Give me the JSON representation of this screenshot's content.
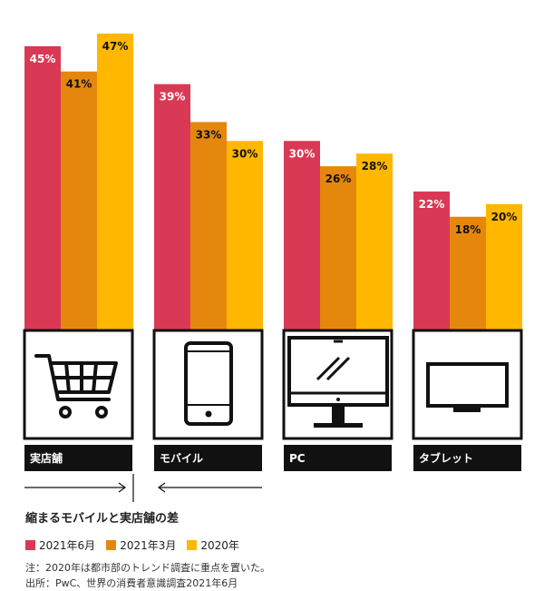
{
  "chart_data": {
    "type": "bar",
    "categories": [
      "実店舗",
      "モバイル",
      "PC",
      "タブレット"
    ],
    "category_icons": [
      "shopping-cart-icon",
      "smartphone-icon",
      "desktop-monitor-icon",
      "tablet-icon"
    ],
    "series": [
      {
        "name": "2021年6月",
        "color": "#d93954",
        "values": [
          45,
          39,
          30,
          22
        ]
      },
      {
        "name": "2021年3月",
        "color": "#e6870d",
        "values": [
          41,
          33,
          26,
          18
        ]
      },
      {
        "name": "2020年",
        "color": "#ffb700",
        "values": [
          47,
          30,
          28,
          20
        ]
      }
    ],
    "value_suffix": "%",
    "ylim": [
      0,
      47
    ]
  },
  "subtitle": "縮まるモバイルと実店舗の差",
  "notes": {
    "note": "注：2020年は都市部のトレンド調査に重点を置いた。",
    "source": "出所：PwC、世界の消費者意識調査2021年6月"
  }
}
